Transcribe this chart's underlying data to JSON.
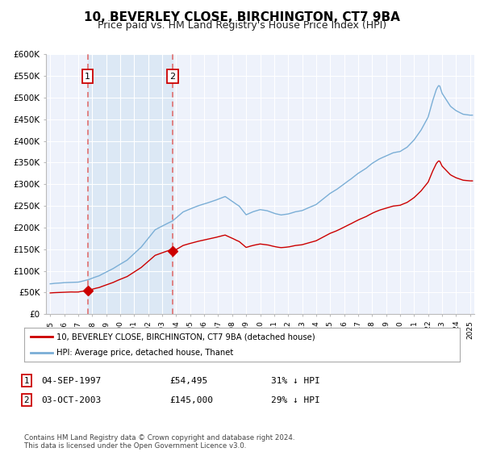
{
  "title": "10, BEVERLEY CLOSE, BIRCHINGTON, CT7 9BA",
  "subtitle": "Price paid vs. HM Land Registry's House Price Index (HPI)",
  "title_fontsize": 11,
  "subtitle_fontsize": 9,
  "sale1_date": "04-SEP-1997",
  "sale1_year": 1997.67,
  "sale1_price": 54495,
  "sale2_date": "03-OCT-2003",
  "sale2_year": 2003.75,
  "sale2_price": 145000,
  "ylim": [
    0,
    600000
  ],
  "xlim": [
    1994.7,
    2025.3
  ],
  "yticks": [
    0,
    50000,
    100000,
    150000,
    200000,
    250000,
    300000,
    350000,
    400000,
    450000,
    500000,
    550000,
    600000
  ],
  "ytick_labels": [
    "£0",
    "£50K",
    "£100K",
    "£150K",
    "£200K",
    "£250K",
    "£300K",
    "£350K",
    "£400K",
    "£450K",
    "£500K",
    "£550K",
    "£600K"
  ],
  "bg_color": "#ffffff",
  "plot_bg_color": "#eef2fb",
  "grid_color": "#ffffff",
  "red_line_color": "#cc0000",
  "blue_line_color": "#7aaed6",
  "shade_color": "#dce8f5",
  "vline_color": "#e07070",
  "legend_label_red": "10, BEVERLEY CLOSE, BIRCHINGTON, CT7 9BA (detached house)",
  "legend_label_blue": "HPI: Average price, detached house, Thanet",
  "footnote": "Contains HM Land Registry data © Crown copyright and database right 2024.\nThis data is licensed under the Open Government Licence v3.0.",
  "table_row1": [
    "1",
    "04-SEP-1997",
    "£54,495",
    "31% ↓ HPI"
  ],
  "table_row2": [
    "2",
    "03-OCT-2003",
    "£145,000",
    "29% ↓ HPI"
  ],
  "hpi_key_points": [
    [
      1995.0,
      70000
    ],
    [
      1996.0,
      72000
    ],
    [
      1997.0,
      73000
    ],
    [
      1997.67,
      78000
    ],
    [
      1998.5,
      88000
    ],
    [
      1999.5,
      105000
    ],
    [
      2000.5,
      125000
    ],
    [
      2001.5,
      155000
    ],
    [
      2002.5,
      195000
    ],
    [
      2003.75,
      215000
    ],
    [
      2004.5,
      235000
    ],
    [
      2005.5,
      248000
    ],
    [
      2006.5,
      258000
    ],
    [
      2007.5,
      270000
    ],
    [
      2008.5,
      248000
    ],
    [
      2009.0,
      228000
    ],
    [
      2009.5,
      235000
    ],
    [
      2010.0,
      240000
    ],
    [
      2010.5,
      238000
    ],
    [
      2011.0,
      232000
    ],
    [
      2011.5,
      228000
    ],
    [
      2012.0,
      230000
    ],
    [
      2012.5,
      235000
    ],
    [
      2013.0,
      238000
    ],
    [
      2013.5,
      245000
    ],
    [
      2014.0,
      252000
    ],
    [
      2014.5,
      265000
    ],
    [
      2015.0,
      278000
    ],
    [
      2015.5,
      288000
    ],
    [
      2016.0,
      300000
    ],
    [
      2016.5,
      312000
    ],
    [
      2017.0,
      325000
    ],
    [
      2017.5,
      335000
    ],
    [
      2018.0,
      348000
    ],
    [
      2018.5,
      358000
    ],
    [
      2019.0,
      365000
    ],
    [
      2019.5,
      372000
    ],
    [
      2020.0,
      375000
    ],
    [
      2020.5,
      385000
    ],
    [
      2021.0,
      402000
    ],
    [
      2021.5,
      425000
    ],
    [
      2022.0,
      455000
    ],
    [
      2022.3,
      490000
    ],
    [
      2022.6,
      520000
    ],
    [
      2022.8,
      530000
    ],
    [
      2023.0,
      510000
    ],
    [
      2023.3,
      495000
    ],
    [
      2023.6,
      480000
    ],
    [
      2024.0,
      470000
    ],
    [
      2024.5,
      462000
    ],
    [
      2025.0,
      460000
    ]
  ]
}
